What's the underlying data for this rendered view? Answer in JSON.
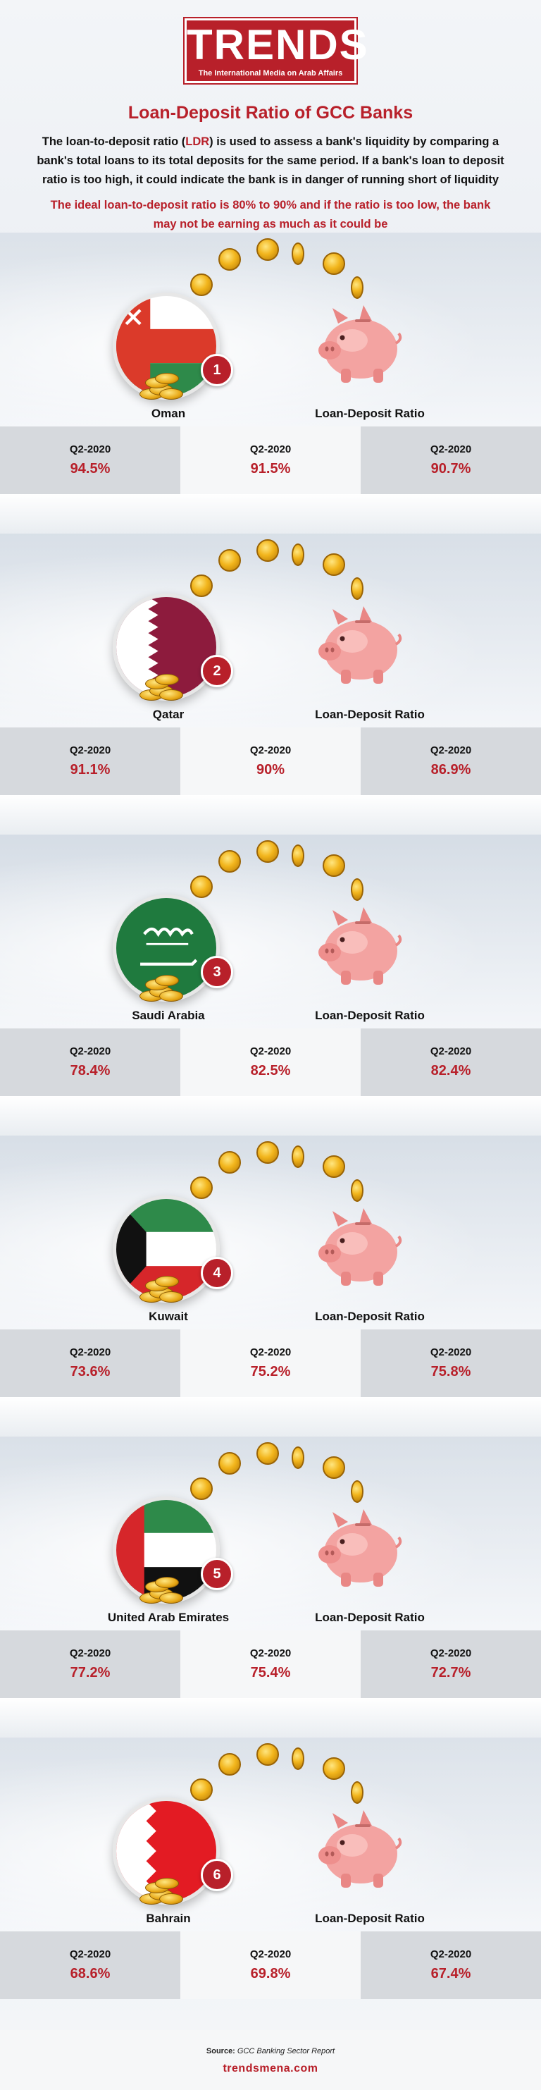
{
  "header": {
    "logo_word": "TRENDS",
    "logo_tagline": "The International Media on Arab Affairs",
    "title": "Loan-Deposit Ratio of  GCC Banks",
    "intro_part1": "The loan-to-deposit ratio (",
    "intro_ldr": "LDR",
    "intro_part2": ") is used to assess a bank's liquidity by comparing a bank's total loans to its total deposits for the same period. If a bank's loan to deposit ratio is too high, it could indicate the bank is in danger of running short of liquidity",
    "intro_red": "The ideal loan-to-deposit ratio is 80% to 90% and if the ratio is too low, the bank may not be earning as much as it could be"
  },
  "colors": {
    "accent": "#b8202a",
    "band_dark": "#d6d9dd",
    "band_light": "#f6f7f8"
  },
  "ratio_label": "Loan-Deposit Ratio",
  "sections": [
    {
      "rank": "1",
      "country": "Oman",
      "flag": "oman-flag-icon",
      "cells": [
        {
          "period": "Q2-2020",
          "value": "94.5%"
        },
        {
          "period": "Q2-2020",
          "value": "91.5%"
        },
        {
          "period": "Q2-2020",
          "value": "90.7%"
        }
      ]
    },
    {
      "rank": "2",
      "country": "Qatar",
      "flag": "qatar-flag-icon",
      "cells": [
        {
          "period": "Q2-2020",
          "value": "91.1%"
        },
        {
          "period": "Q2-2020",
          "value": "90%"
        },
        {
          "period": "Q2-2020",
          "value": "86.9%"
        }
      ]
    },
    {
      "rank": "3",
      "country": "Saudi Arabia",
      "flag": "saudi-flag-icon",
      "cells": [
        {
          "period": "Q2-2020",
          "value": "78.4%"
        },
        {
          "period": "Q2-2020",
          "value": "82.5%"
        },
        {
          "period": "Q2-2020",
          "value": "82.4%"
        }
      ]
    },
    {
      "rank": "4",
      "country": "Kuwait",
      "flag": "kuwait-flag-icon",
      "cells": [
        {
          "period": "Q2-2020",
          "value": "73.6%"
        },
        {
          "period": "Q2-2020",
          "value": "75.2%"
        },
        {
          "period": "Q2-2020",
          "value": "75.8%"
        }
      ]
    },
    {
      "rank": "5",
      "country": "United Arab Emirates",
      "flag": "uae-flag-icon",
      "cells": [
        {
          "period": "Q2-2020",
          "value": "77.2%"
        },
        {
          "period": "Q2-2020",
          "value": "75.4%"
        },
        {
          "period": "Q2-2020",
          "value": "72.7%"
        }
      ]
    },
    {
      "rank": "6",
      "country": "Bahrain",
      "flag": "bahrain-flag-icon",
      "cells": [
        {
          "period": "Q2-2020",
          "value": "68.6%"
        },
        {
          "period": "Q2-2020",
          "value": "69.8%"
        },
        {
          "period": "Q2-2020",
          "value": "67.4%"
        }
      ]
    }
  ],
  "footer": {
    "source_label": "Source:",
    "source_text": "GCC Banking Sector Report",
    "site": "trendsmena.com"
  }
}
